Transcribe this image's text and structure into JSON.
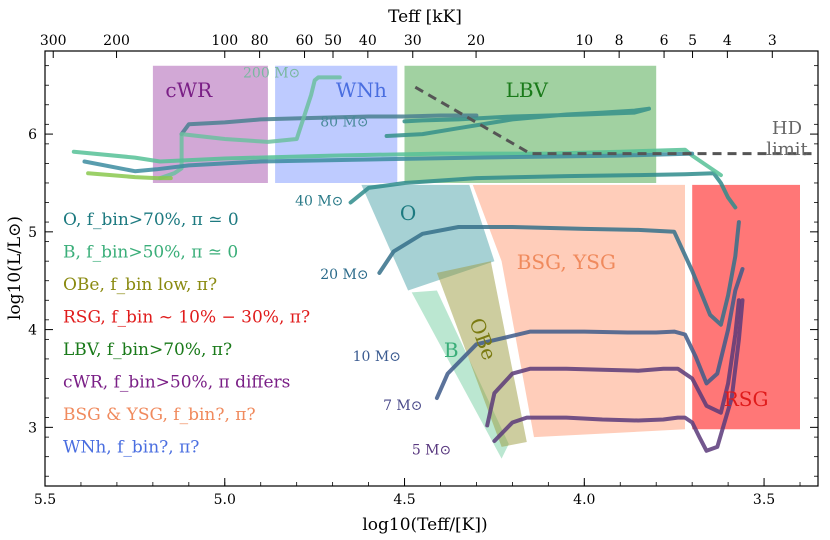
{
  "chart_data": {
    "type": "scatter",
    "title": "",
    "xlabel": "log10(Teff/[K])",
    "ylabel": "log10(L/L⊙)",
    "top_xlabel": "Teff [kK]",
    "xlim": [
      5.5,
      3.35
    ],
    "ylim": [
      2.4,
      6.85
    ],
    "x_ticks": [
      5.5,
      5.0,
      4.5,
      4.0,
      3.5
    ],
    "x_tick_labels": [
      "5.5",
      "5.0",
      "4.5",
      "4.0",
      "3.5"
    ],
    "y_ticks": [
      3,
      4,
      5,
      6
    ],
    "y_tick_labels": [
      "3",
      "4",
      "5",
      "6"
    ],
    "top_ticks": [
      {
        "value": 300,
        "label": "300"
      },
      {
        "value": 200,
        "label": "200"
      },
      {
        "value": 100,
        "label": "100"
      },
      {
        "value": 80,
        "label": "80"
      },
      {
        "value": 60,
        "label": "60"
      },
      {
        "value": 50,
        "label": "50"
      },
      {
        "value": 40,
        "label": "40"
      },
      {
        "value": 30,
        "label": "30"
      },
      {
        "value": 20,
        "label": "20"
      },
      {
        "value": 10,
        "label": "10"
      },
      {
        "value": 8,
        "label": "8"
      },
      {
        "value": 6,
        "label": "6"
      },
      {
        "value": 5,
        "label": "5"
      },
      {
        "value": 4,
        "label": "4"
      },
      {
        "value": 3,
        "label": "3"
      }
    ],
    "regions": [
      {
        "name": "cWR",
        "label": "cWR",
        "color": "#9b3fa4",
        "alpha": 0.45,
        "label_color": "#7a1f86",
        "points": [
          [
            5.2,
            6.7
          ],
          [
            4.88,
            6.7
          ],
          [
            4.88,
            5.5
          ],
          [
            5.2,
            5.5
          ]
        ],
        "label_at": [
          5.1,
          6.38
        ]
      },
      {
        "name": "WNh",
        "label": "WNh",
        "color": "#6f8cff",
        "alpha": 0.45,
        "label_color": "#4a6ee0",
        "points": [
          [
            4.86,
            6.7
          ],
          [
            4.52,
            6.7
          ],
          [
            4.52,
            5.5
          ],
          [
            4.86,
            5.5
          ]
        ],
        "label_at": [
          4.62,
          6.38
        ]
      },
      {
        "name": "LBV",
        "label": "LBV",
        "color": "#2e9a2e",
        "alpha": 0.45,
        "label_color": "#1a7a1a",
        "points": [
          [
            4.5,
            6.7
          ],
          [
            3.8,
            6.7
          ],
          [
            3.8,
            5.5
          ],
          [
            4.5,
            5.5
          ]
        ],
        "label_at": [
          4.16,
          6.38
        ]
      },
      {
        "name": "O",
        "label": "O",
        "color": "#3a9aa0",
        "alpha": 0.45,
        "label_color": "#1d7a80",
        "points": [
          [
            4.62,
            5.48
          ],
          [
            4.32,
            5.48
          ],
          [
            4.25,
            4.7
          ],
          [
            4.49,
            4.4
          ]
        ],
        "label_at": [
          4.49,
          5.12
        ]
      },
      {
        "name": "BSG-YSG",
        "label": "BSG, YSG",
        "color": "#ffa482",
        "alpha": 0.55,
        "label_color": "#f08a5d",
        "points": [
          [
            4.31,
            5.48
          ],
          [
            3.72,
            5.48
          ],
          [
            3.72,
            2.98
          ],
          [
            4.14,
            2.9
          ],
          [
            4.23,
            4.7
          ]
        ],
        "label_at": [
          4.05,
          4.62
        ]
      },
      {
        "name": "RSG",
        "label": "RSG",
        "color": "#ff4a4a",
        "alpha": 0.75,
        "label_color": "#e01b1b",
        "points": [
          [
            3.7,
            5.48
          ],
          [
            3.4,
            5.48
          ],
          [
            3.4,
            2.98
          ],
          [
            3.7,
            2.98
          ]
        ],
        "label_at": [
          3.55,
          3.22
        ]
      },
      {
        "name": "B",
        "label": "B",
        "color": "#68c99a",
        "alpha": 0.45,
        "label_color": "#3aae79",
        "points": [
          [
            4.48,
            4.38
          ],
          [
            4.41,
            4.4
          ],
          [
            4.21,
            2.83
          ],
          [
            4.23,
            2.68
          ]
        ],
        "label_at": [
          4.37,
          3.72
        ]
      },
      {
        "name": "OBe",
        "label": "OBe",
        "color": "#9c9c40",
        "alpha": 0.5,
        "label_color": "#7a7a10",
        "points": [
          [
            4.41,
            4.58
          ],
          [
            4.26,
            4.7
          ],
          [
            4.16,
            2.85
          ],
          [
            4.23,
            2.8
          ]
        ],
        "label_at": [
          4.3,
          3.88
        ]
      }
    ],
    "legend": [
      {
        "text": "O, f_bin>70%, π ≃ 0",
        "color": "#1d7a80"
      },
      {
        "text": "B, f_bin>50%, π ≃ 0",
        "color": "#3aae79"
      },
      {
        "text": "OBe, f_bin low, π?",
        "color": "#8a8a10"
      },
      {
        "text": "RSG, f_bin ~ 10% − 30%, π?",
        "color": "#e01b1b"
      },
      {
        "text": "LBV, f_bin>70%, π?",
        "color": "#1a7a1a"
      },
      {
        "text": "cWR, f_bin>50%, π differs",
        "color": "#7a1f86"
      },
      {
        "text": "BSG & YSG, f_bin?, π?",
        "color": "#f08a5d"
      },
      {
        "text": "WNh, f_bin?, π?",
        "color": "#4a6ee0"
      }
    ],
    "hd_limit": {
      "label_top": "HD",
      "label_bottom": "limit",
      "points": [
        [
          4.47,
          6.48
        ],
        [
          4.15,
          5.8
        ],
        [
          3.35,
          5.8
        ]
      ],
      "color": "#555555"
    },
    "track_labels": [
      {
        "text": "200 M⊙",
        "at": [
          4.79,
          6.58
        ],
        "color": "#7ab8a0"
      },
      {
        "text": "80 M⊙",
        "at": [
          4.6,
          6.08
        ],
        "color": "#4a8a9a"
      },
      {
        "text": "40 M⊙",
        "at": [
          4.67,
          5.27
        ],
        "color": "#2a7a88"
      },
      {
        "text": "20 M⊙",
        "at": [
          4.6,
          4.52
        ],
        "color": "#2a6a8a"
      },
      {
        "text": "10 M⊙",
        "at": [
          4.51,
          3.68
        ],
        "color": "#3a5a90"
      },
      {
        "text": "7 M⊙",
        "at": [
          4.45,
          3.18
        ],
        "color": "#4a4a8a"
      },
      {
        "text": "5 M⊙",
        "at": [
          4.37,
          2.72
        ],
        "color": "#5a3a80"
      }
    ],
    "series": [
      {
        "name": "5 M⊙",
        "color": "#5a3a7a",
        "x": [
          4.25,
          4.2,
          4.16,
          4.05,
          3.95,
          3.85,
          3.78,
          3.74,
          3.72,
          3.7,
          3.68,
          3.66,
          3.63,
          3.59,
          3.57,
          3.56
        ],
        "y": [
          2.86,
          3.05,
          3.1,
          3.1,
          3.08,
          3.07,
          3.08,
          3.1,
          3.1,
          3.05,
          2.9,
          2.76,
          2.8,
          3.3,
          3.9,
          4.3
        ]
      },
      {
        "name": "7 M⊙",
        "color": "#5a3a78",
        "x": [
          4.27,
          4.25,
          4.2,
          4.15,
          4.05,
          3.95,
          3.85,
          3.78,
          3.74,
          3.7,
          3.66,
          3.62,
          3.6,
          3.58,
          3.57
        ],
        "y": [
          3.02,
          3.35,
          3.55,
          3.6,
          3.6,
          3.59,
          3.58,
          3.6,
          3.6,
          3.5,
          3.22,
          3.15,
          3.45,
          3.95,
          4.3
        ]
      },
      {
        "name": "10 M⊙",
        "color": "#3e5a8a",
        "x": [
          4.41,
          4.38,
          4.3,
          4.15,
          4.0,
          3.88,
          3.8,
          3.75,
          3.72,
          3.69,
          3.66,
          3.63,
          3.6,
          3.58,
          3.56
        ],
        "y": [
          3.3,
          3.55,
          3.85,
          3.98,
          3.98,
          3.97,
          3.97,
          3.98,
          3.95,
          3.72,
          3.45,
          3.55,
          4.0,
          4.4,
          4.62
        ]
      },
      {
        "name": "20 M⊙",
        "color": "#35708a",
        "x": [
          4.57,
          4.53,
          4.45,
          4.35,
          4.2,
          4.0,
          3.85,
          3.75,
          3.7,
          3.65,
          3.62,
          3.6,
          3.58,
          3.57
        ],
        "y": [
          4.58,
          4.8,
          4.98,
          5.05,
          5.05,
          5.03,
          5.02,
          5.0,
          4.6,
          4.15,
          4.05,
          4.35,
          4.75,
          5.1
        ]
      },
      {
        "name": "40 M⊙",
        "color": "#2f8c8c",
        "x": [
          4.65,
          4.6,
          4.5,
          4.3,
          4.05,
          3.85,
          3.72,
          3.64,
          3.62,
          3.6,
          3.58
        ],
        "y": [
          5.3,
          5.45,
          5.5,
          5.55,
          5.57,
          5.58,
          5.59,
          5.6,
          5.5,
          5.35,
          5.25
        ]
      },
      {
        "name": "80 M⊙",
        "color": "#35908a",
        "x": [
          4.55,
          4.45,
          4.35,
          4.2,
          4.05,
          3.95,
          3.86,
          3.82,
          3.86,
          4.0,
          4.2,
          4.35,
          4.45,
          4.5
        ],
        "y": [
          5.98,
          6.0,
          6.06,
          6.15,
          6.2,
          6.22,
          6.24,
          6.26,
          6.22,
          6.2,
          6.18,
          6.15,
          6.14,
          6.13
        ]
      },
      {
        "name": "120 M⊙",
        "color": "#4a8090",
        "x": [
          5.12,
          5.1,
          5.0,
          4.9,
          4.8,
          4.6,
          4.5,
          4.4,
          4.3
        ],
        "y": [
          6.0,
          6.1,
          6.12,
          6.15,
          6.16,
          6.18,
          6.18,
          6.19,
          6.19
        ]
      },
      {
        "name": "200 M⊙",
        "color": "#6cbfa0",
        "x": [
          5.18,
          5.14,
          5.12,
          5.12,
          5.0,
          4.88,
          4.8,
          4.76,
          4.75,
          4.74,
          4.68
        ],
        "y": [
          5.55,
          5.6,
          5.65,
          6.0,
          5.95,
          5.92,
          5.95,
          6.4,
          6.55,
          6.58,
          6.58
        ]
      },
      {
        "name": "ZAMS-upper",
        "color": "#56c196",
        "x": [
          5.42,
          5.25,
          5.18,
          5.0,
          4.7,
          4.4,
          4.1,
          3.9,
          3.72,
          3.7,
          3.66,
          3.62
        ],
        "y": [
          5.82,
          5.76,
          5.72,
          5.75,
          5.78,
          5.8,
          5.8,
          5.82,
          5.84,
          5.78,
          5.68,
          5.58
        ]
      },
      {
        "name": "ZAMS-mid",
        "color": "#3c8ca0",
        "x": [
          5.39,
          5.25,
          5.19,
          5.1,
          4.9,
          4.6,
          4.3,
          3.9,
          3.7
        ],
        "y": [
          5.72,
          5.62,
          5.64,
          5.68,
          5.72,
          5.74,
          5.76,
          5.78,
          5.8
        ]
      },
      {
        "name": "ZAMS-lower",
        "color": "#8ac84e",
        "x": [
          5.38,
          5.25,
          5.19,
          5.15
        ],
        "y": [
          5.6,
          5.56,
          5.55,
          5.55
        ]
      }
    ]
  }
}
